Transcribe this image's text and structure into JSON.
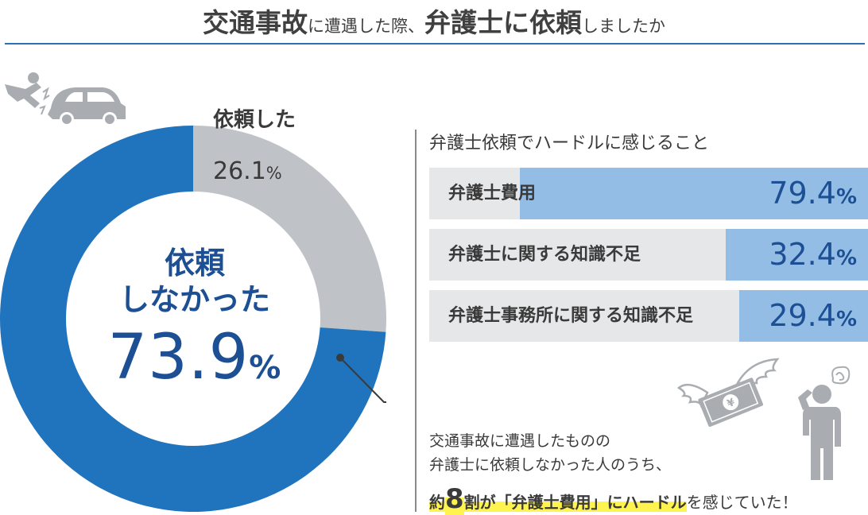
{
  "title": {
    "part1": "交通事故",
    "part2": "に遭遇した際、",
    "part3": "弁護士に依頼",
    "part4": "しましたか"
  },
  "chart_data": [
    {
      "type": "pie",
      "categories": [
        "依頼した",
        "依頼しなかった"
      ],
      "values": [
        26.1,
        73.9
      ],
      "unit": "%",
      "colors": [
        "#bfc3c7",
        "#1f74bd"
      ],
      "labels": {
        "requested": "依頼した",
        "requested_value": "26.1",
        "not_requested_line1": "依頼",
        "not_requested_line2": "しなかった",
        "not_requested_value": "73.9",
        "unit": "%"
      }
    },
    {
      "type": "bar",
      "title": "弁護士依頼でハードルに感じること",
      "categories": [
        "弁護士費用",
        "弁護士に関する知識不足",
        "弁護士事務所に関する知識不足"
      ],
      "values": [
        79.4,
        32.4,
        29.4
      ],
      "value_labels": [
        "79.4",
        "32.4",
        "29.4"
      ],
      "unit": "%",
      "xlim": [
        0,
        100
      ],
      "colors": {
        "fill": "#94bde6",
        "track": "#e6e7e8",
        "value_text": "#1c4f93"
      }
    }
  ],
  "note": {
    "line1": "交通事故に遭遇したものの",
    "line2": "弁護士に依頼しなかった人のうち、",
    "line3_a": "約",
    "line3_b": "8",
    "line3_c": "割が「弁護士費用」にハードル",
    "line3_d": "を感じていた！"
  },
  "icons": [
    "accident-person-car-icon",
    "flying-money-icon",
    "worried-person-icon"
  ],
  "colors": {
    "accent": "#2f6fb2",
    "donut_main": "#1f74bd",
    "donut_other": "#bfc3c7",
    "text_blue": "#1c4f93",
    "highlight": "#fff34f"
  }
}
